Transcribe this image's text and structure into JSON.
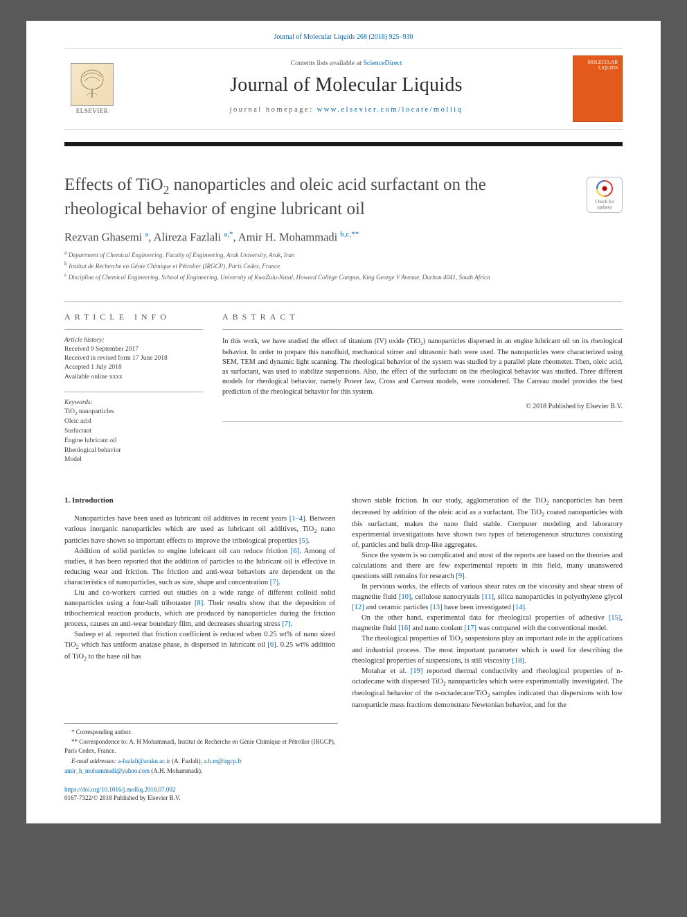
{
  "cite_line": "Journal of Molecular Liquids 268 (2018) 925–930",
  "masthead": {
    "contents_prefix": "Contents lists available at ",
    "contents_link": "ScienceDirect",
    "journal_name": "Journal of Molecular Liquids",
    "homepage_prefix": "journal homepage: ",
    "homepage_url": "www.elsevier.com/locate/molliq",
    "elsevier_word": "ELSEVIER",
    "cover_label1": "MOLECULAR",
    "cover_label2": "LIQUIDS"
  },
  "crossmark": {
    "line1": "Check for",
    "line2": "updates"
  },
  "title_html": "Effects of TiO<sub>2</sub> nanoparticles and oleic acid surfactant on the rheological behavior of engine lubricant oil",
  "authors_html": "Rezvan Ghasemi <span class=\"aff-sup\">a</span>, Alireza Fazlali <span class=\"aff-sup\">a,*</span>, Amir H. Mohammadi <span class=\"aff-sup\">b,c,**</span>",
  "affiliations": [
    "a  Department of Chemical Engineering, Faculty of Engineering, Arak University, Arak, Iran",
    "b  Institut de Recherche en Génie Chimique et Pétrolier (IRGCP), Paris Cedex, France",
    "c  Discipline of Chemical Engineering, School of Engineering, University of KwaZulu-Natal, Howard College Campus, King George V Avenue, Durban 4041, South Africa"
  ],
  "article_info": {
    "heading": "ARTICLE INFO",
    "history_label": "Article history:",
    "history": [
      "Received 9 September 2017",
      "Received in revised form 17 June 2018",
      "Accepted 1 July 2018",
      "Available online xxxx"
    ],
    "keywords_label": "Keywords:",
    "keywords_html": [
      "TiO<sub>2</sub> nanoparticles",
      "Oleic acid",
      "Surfactant",
      "Engine lubricant oil",
      "Rheological behavior",
      "Model"
    ]
  },
  "abstract": {
    "heading": "ABSTRACT",
    "text_html": "In this work, we have studied the effect of titanium (IV) oxide (TiO<sub>2</sub>) nanoparticles dispersed in an engine lubricant oil on its rheological behavior. In order to prepare this nanofluid, mechanical stirrer and ultrasonic bath were used. The nanoparticles were characterized using SEM, TEM and dynamic light scanning. The rheological behavior of the system was studied by a parallel plate rheometer. Then, oleic acid, as surfactant, was used to stabilize suspensions. Also, the effect of the surfactant on the rheological behavior was studied. Three different models for rheological behavior, namely Power law, Cross and Carreau models, were considered. The Carreau model provides the best prediction of the rheological behavior for this system.",
    "copyright": "© 2018 Published by Elsevier B.V."
  },
  "body": {
    "section_heading": "1. Introduction",
    "col1_paras_html": [
      "Nanoparticles have been used as lubricant oil additives in recent years <span class=\"ref\">[1–4]</span>. Between various inorganic nanoparticles which are used as lubricant oil additives, TiO<sub>2</sub> nano particles have shown so important effects to improve the tribological properties <span class=\"ref\">[5]</span>.",
      "Addition of solid particles to engine lubricant oil can reduce friction <span class=\"ref\">[6]</span>. Among of studies, it has been reported that the addition of particles to the lubricant oil is effective in reducing wear and friction. The friction and anti-wear behaviors are dependent on the characteristics of nanoparticles, such as size, shape and concentration <span class=\"ref\">[7]</span>.",
      "Liu and co-workers carried out studies on a wide range of different colloid solid nanoparticles using a four-ball tribotaster <span class=\"ref\">[8]</span>. Their results show that the deposition of tribochemical reaction products, which are produced by nanoparticles during the friction process, causes an anti-wear boundary film, and decreases shearing stress <span class=\"ref\">[7]</span>.",
      "Sudeep et al. reported that friction coefficient is reduced when 0.25 wt% of nano sized TiO<sub>2</sub> which has uniform anatase phase, is dispersed in lubricant oil <span class=\"ref\">[6]</span>. 0.25 wt% addition of TiO<sub>2</sub> to the base oil has"
    ],
    "col2_paras_html": [
      "shown stable friction. In our study, agglomeration of the TiO<sub>2</sub> nanoparticles has been decreased by addition of the oleic acid as a surfactant. The TiO<sub>2</sub> coated nanoparticles with this surfactant, makes the nano fluid stable. Computer modeling and laboratory experimental investigations have shown two types of heterogeneous structures consisting of, particles and bulk drop-like aggregates.",
      "Since the system is so complicated and most of the reports are based on the theories and calculations and there are few experimental reports in this field, many unanswered questions still remains for research <span class=\"ref\">[9]</span>.",
      "In pervious works, the effects of various shear rates on the viscosity and shear stress of magnetite fluid <span class=\"ref\">[10]</span>, cellulose nanocrystals <span class=\"ref\">[11]</span>, silica nanoparticles in polyethylene glycol <span class=\"ref\">[12]</span> and ceramic particles <span class=\"ref\">[13]</span> have been investigated <span class=\"ref\">[14]</span>.",
      "On the other hand, experimental data for rheological properties of adhesive <span class=\"ref\">[15]</span>, magnetite fluid <span class=\"ref\">[16]</span> and nano coolant <span class=\"ref\">[17]</span> was compared with the conventional model.",
      "The rheological properties of TiO<sub>2</sub> suspensions play an important role in the applications and industrial process. The most important parameter which is used for describing the rheological properties of suspensions, is still viscosity <span class=\"ref\">[18]</span>.",
      "Motahar et al. <span class=\"ref\">[19]</span> reported thermal conductivity and rheological properties of n-octadecane with dispersed TiO<sub>2</sub> nanoparticles which were experimentally investigated. The rheological behavior of the n-octadecane/TiO<sub>2</sub> samples indicated that dispersions with low nanoparticle mass fractions demonstrate Newtonian behavior, and for the"
    ]
  },
  "footnotes": {
    "corr1": "*  Corresponding author.",
    "corr2": "** Correspondence to: A. H Mohammadi, Institut de Recherche en Génie Chimique et Pétrolier (IRGCP), Paris Cedex, France.",
    "email_label": "E-mail addresses:",
    "email1": "a-fazlali@araku.ac.ir",
    "email1_who": " (A. Fazlali), ",
    "email2": "a.h.m@irgcp.fr",
    "email3": "amir_h_mohammadi@yahoo.com",
    "email3_who": " (A.H. Mohammadi)."
  },
  "bottom": {
    "doi": "https://doi.org/10.1016/j.molliq.2018.07.002",
    "issn_line": "0167-7322/© 2018 Published by Elsevier B.V."
  },
  "colors": {
    "link": "#0066b3",
    "page_bg": "#ffffff",
    "outer_bg": "#595959",
    "cover_bg": "#e35a1c",
    "text": "#2b2b2b",
    "muted": "#555555",
    "rule": "#aaaaaa"
  }
}
